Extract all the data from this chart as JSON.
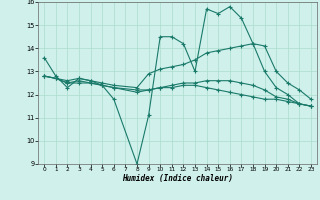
{
  "title": "",
  "xlabel": "Humidex (Indice chaleur)",
  "bg_color": "#cff0eb",
  "grid_color": "#aaddcc",
  "line_color": "#1a7a6a",
  "xlim": [
    -0.5,
    23.5
  ],
  "ylim": [
    9,
    16
  ],
  "xticks": [
    0,
    1,
    2,
    3,
    4,
    5,
    6,
    7,
    8,
    9,
    10,
    11,
    12,
    13,
    14,
    15,
    16,
    17,
    18,
    19,
    20,
    21,
    22,
    23
  ],
  "yticks": [
    9,
    10,
    11,
    12,
    13,
    14,
    15,
    16
  ],
  "lines": [
    {
      "x": [
        0,
        1,
        2,
        3,
        4,
        5,
        6,
        8,
        9,
        10,
        11,
        12,
        13,
        14,
        15,
        16,
        17,
        18,
        19,
        20,
        21,
        22,
        23
      ],
      "y": [
        13.6,
        12.8,
        12.3,
        12.7,
        12.6,
        12.4,
        11.8,
        9.0,
        11.1,
        14.5,
        14.5,
        14.2,
        13.0,
        15.7,
        15.5,
        15.8,
        15.3,
        14.2,
        13.0,
        12.3,
        12.0,
        11.6,
        11.5
      ]
    },
    {
      "x": [
        0,
        1,
        2,
        3,
        4,
        5,
        6,
        8,
        9,
        10,
        11,
        12,
        13,
        14,
        15,
        16,
        17,
        18,
        19,
        20,
        21,
        22,
        23
      ],
      "y": [
        12.8,
        12.7,
        12.6,
        12.7,
        12.6,
        12.5,
        12.4,
        12.3,
        12.9,
        13.1,
        13.2,
        13.3,
        13.5,
        13.8,
        13.9,
        14.0,
        14.1,
        14.2,
        14.1,
        13.0,
        12.5,
        12.2,
        11.8
      ]
    },
    {
      "x": [
        0,
        1,
        2,
        3,
        4,
        5,
        6,
        8,
        9,
        10,
        11,
        12,
        13,
        14,
        15,
        16,
        17,
        18,
        19,
        20,
        21,
        22,
        23
      ],
      "y": [
        12.8,
        12.7,
        12.5,
        12.6,
        12.5,
        12.4,
        12.3,
        12.2,
        12.2,
        12.3,
        12.4,
        12.5,
        12.5,
        12.6,
        12.6,
        12.6,
        12.5,
        12.4,
        12.2,
        11.9,
        11.8,
        11.6,
        11.5
      ]
    },
    {
      "x": [
        0,
        1,
        2,
        3,
        4,
        5,
        6,
        8,
        9,
        10,
        11,
        12,
        13,
        14,
        15,
        16,
        17,
        18,
        19,
        20,
        21,
        22,
        23
      ],
      "y": [
        12.8,
        12.7,
        12.5,
        12.5,
        12.5,
        12.4,
        12.3,
        12.1,
        12.2,
        12.3,
        12.3,
        12.4,
        12.4,
        12.3,
        12.2,
        12.1,
        12.0,
        11.9,
        11.8,
        11.8,
        11.7,
        11.6,
        11.5
      ]
    }
  ]
}
